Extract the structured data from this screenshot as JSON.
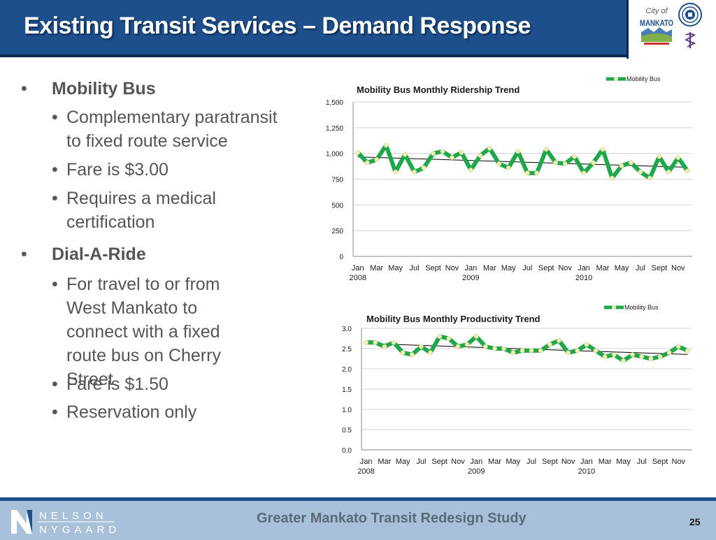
{
  "slide": {
    "title": "Existing Transit Services – Demand Response",
    "page_number": "25"
  },
  "logos": {
    "city_script": "City of",
    "city_name": "MANKATO"
  },
  "bullets": {
    "marker": "•",
    "sections": [
      {
        "heading": "Mobility Bus",
        "items": [
          "Complementary paratransit to fixed route service",
          "Fare is $3.00",
          "Requires a medical certification"
        ]
      },
      {
        "heading": "Dial-A-Ride",
        "items": [
          "For travel to or from West Mankato to connect with a fixed route bus on Cherry Street",
          "Fare is $1.50",
          "Reservation only"
        ]
      }
    ]
  },
  "footer": {
    "study_title": "Greater Mankato Transit Redesign Study",
    "company_line1": "NELSON",
    "company_line2": "NYGAARD"
  },
  "colors": {
    "header": "#1d4f8c",
    "series_line": "#1fa84a",
    "series_marker": "#f0efb0",
    "trend_line": "#000000"
  },
  "chart_data": [
    {
      "type": "line",
      "title": "Mobility Bus Monthly Ridership Trend",
      "legend": [
        "Mobility Bus"
      ],
      "legend_position": "top-right",
      "grid": true,
      "trendline": true,
      "x_tick_labels": [
        "Jan",
        "Mar",
        "May",
        "Jul",
        "Sept",
        "Nov",
        "Jan",
        "Mar",
        "May",
        "Jul",
        "Sept",
        "Nov",
        "Jan",
        "Mar",
        "May",
        "Jul",
        "Sept",
        "Nov"
      ],
      "year_labels": [
        "2008",
        "2009",
        "2010"
      ],
      "yticks": [
        "0",
        "250",
        "500",
        "750",
        "1,000",
        "1,250",
        "1,500"
      ],
      "ylim": [
        0,
        1500
      ],
      "series": [
        {
          "name": "Mobility Bus",
          "values": [
            1010,
            910,
            940,
            1080,
            820,
            990,
            820,
            860,
            1000,
            1020,
            960,
            1010,
            840,
            980,
            1050,
            900,
            860,
            1020,
            810,
            810,
            1040,
            910,
            900,
            970,
            810,
            910,
            1040,
            760,
            880,
            910,
            820,
            760,
            970,
            820,
            960,
            830
          ]
        }
      ]
    },
    {
      "type": "line",
      "title": "Mobility Bus Monthly Productivity Trend",
      "legend": [
        "Mobility Bus"
      ],
      "legend_position": "top-right",
      "grid": true,
      "trendline": true,
      "x_tick_labels": [
        "Jan",
        "Mar",
        "May",
        "Jul",
        "Sept",
        "Nov",
        "Jan",
        "Mar",
        "May",
        "Jul",
        "Sept",
        "Nov",
        "Jan",
        "Mar",
        "May",
        "Jul",
        "Sept",
        "Nov"
      ],
      "year_labels": [
        "2008",
        "2009",
        "2010"
      ],
      "yticks": [
        "0.0",
        "0.5",
        "1.0",
        "1.5",
        "2.0",
        "2.5",
        "3.0"
      ],
      "ylim": [
        0,
        3
      ],
      "series": [
        {
          "name": "Mobility Bus",
          "values": [
            2.65,
            2.65,
            2.55,
            2.65,
            2.4,
            2.35,
            2.55,
            2.4,
            2.8,
            2.75,
            2.55,
            2.6,
            2.8,
            2.55,
            2.5,
            2.5,
            2.4,
            2.45,
            2.45,
            2.45,
            2.6,
            2.7,
            2.4,
            2.45,
            2.6,
            2.45,
            2.3,
            2.35,
            2.2,
            2.35,
            2.3,
            2.25,
            2.3,
            2.4,
            2.55,
            2.45
          ]
        }
      ]
    }
  ]
}
